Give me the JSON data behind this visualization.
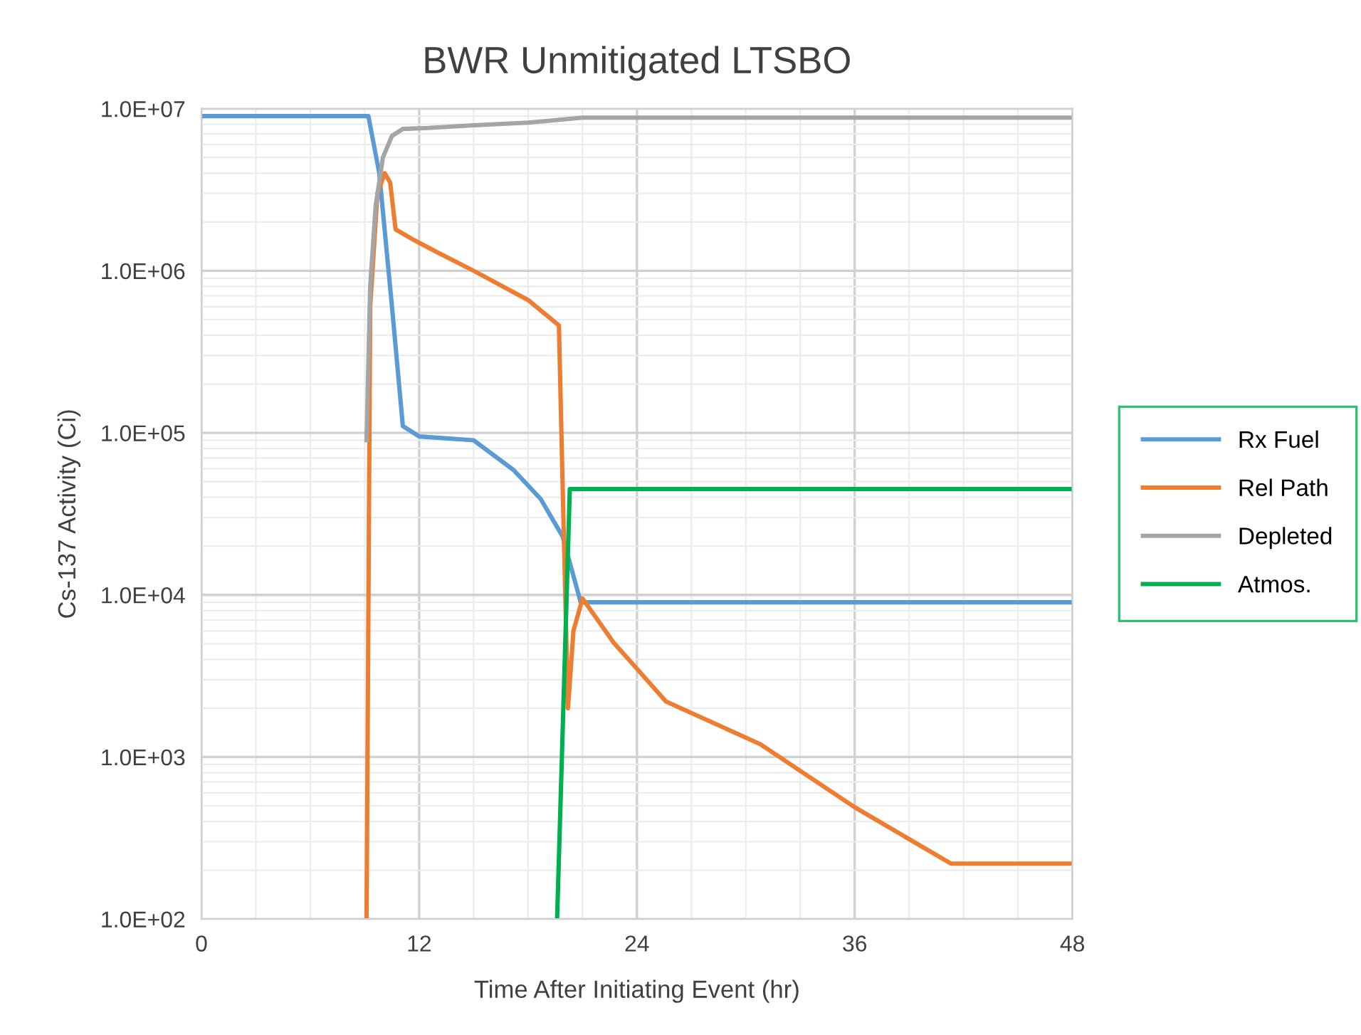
{
  "chart_data": {
    "type": "line",
    "title": "BWR Unmitigated LTSBO",
    "xlabel": "Time After Initiating Event (hr)",
    "ylabel": "Cs-137 Activity (Ci)",
    "log": "y",
    "grid": true,
    "legend": "right",
    "marker": "none",
    "line_style": "solid",
    "xlim": [
      0,
      48
    ],
    "xticks": [
      0,
      12,
      24,
      36,
      48
    ],
    "ylim": [
      100,
      10000000
    ],
    "yticks": [
      {
        "value": 100,
        "label": "1.0E+02"
      },
      {
        "value": 1000,
        "label": "1.0E+03"
      },
      {
        "value": 10000,
        "label": "1.0E+04"
      },
      {
        "value": 100000,
        "label": "1.0E+05"
      },
      {
        "value": 1000000,
        "label": "1.0E+06"
      },
      {
        "value": 10000000,
        "label": "1.0E+07"
      }
    ],
    "series": [
      {
        "name": "Rx Fuel",
        "color": "#5b9bd5",
        "x": [
          0,
          9.2,
          9.8,
          10.5,
          11.1,
          12,
          15,
          17.2,
          18.7,
          19.9,
          20.9,
          48
        ],
        "values": [
          9000000,
          9000000,
          4000000,
          600000,
          110000,
          95000,
          90000,
          59000,
          39000,
          23000,
          9000,
          9000
        ]
      },
      {
        "name": "Rel Path",
        "color": "#ed7d31",
        "x": [
          9.1,
          9.3,
          9.7,
          10.1,
          10.4,
          10.7,
          11.7,
          13,
          15,
          18,
          19.7,
          19.9,
          20.2,
          20.5,
          21,
          22.7,
          24,
          25.6,
          30.8,
          36,
          41.3,
          48
        ],
        "values": [
          100,
          600000,
          3000000,
          4000000,
          3500000,
          1800000,
          1550000,
          1300000,
          1000000,
          660000,
          460000,
          50000,
          2000,
          6000,
          9500,
          5100,
          3500,
          2200,
          1200,
          490,
          220,
          220
        ]
      },
      {
        "name": "Depleted",
        "color": "#a5a5a5",
        "x": [
          9.1,
          9.3,
          9.6,
          10,
          10.5,
          11.1,
          12.5,
          15,
          18,
          21,
          48
        ],
        "values": [
          90000,
          800000,
          2500000,
          5000000,
          6800000,
          7500000,
          7600000,
          7900000,
          8200000,
          8800000,
          8800000
        ]
      },
      {
        "name": "Atmos.",
        "color": "#00b050",
        "x": [
          19.6,
          20.3,
          48
        ],
        "values": [
          100,
          45000,
          45000
        ]
      }
    ]
  }
}
